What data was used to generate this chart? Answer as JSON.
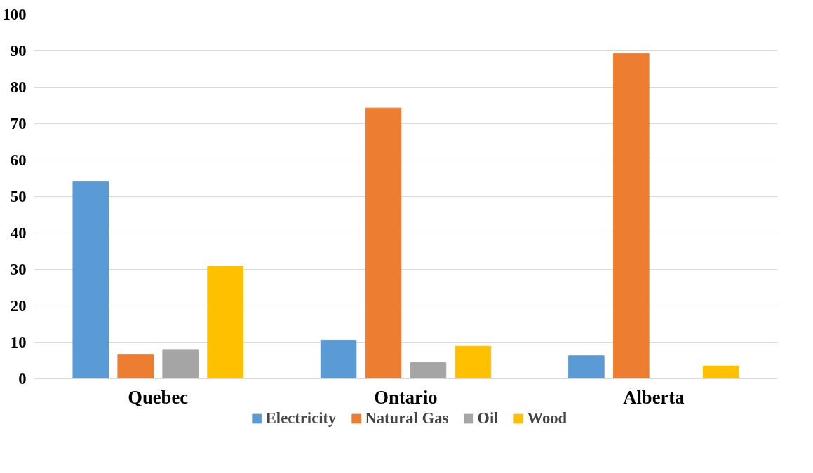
{
  "chart_data": {
    "type": "bar",
    "categories": [
      "Quebec",
      "Ontario",
      "Alberta"
    ],
    "series": [
      {
        "name": "Electricity",
        "color": "#5b9bd5",
        "values": [
          54.1,
          10.6,
          6.3
        ]
      },
      {
        "name": "Natural Gas",
        "color": "#ed7d31",
        "values": [
          6.7,
          74.3,
          89.3
        ]
      },
      {
        "name": "Oil",
        "color": "#a5a5a5",
        "values": [
          8.0,
          4.4,
          0
        ]
      },
      {
        "name": "Wood",
        "color": "#ffc000",
        "values": [
          30.9,
          8.9,
          3.5
        ]
      }
    ],
    "ylim": [
      0,
      100
    ],
    "yticks": [
      0,
      10,
      20,
      30,
      40,
      50,
      60,
      70,
      80,
      90,
      100
    ],
    "grid": "y",
    "legend": "bottom"
  }
}
